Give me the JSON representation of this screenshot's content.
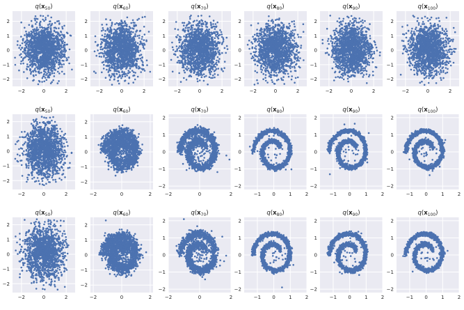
{
  "chart_data": [
    {
      "type": "scatter",
      "title": "q(x₅₀)",
      "title_base": "q(",
      "title_sub": "50",
      "pattern": "blob",
      "xlim": [
        -2.8,
        2.8
      ],
      "ylim": [
        -2.5,
        2.7
      ],
      "xticks": [
        -2,
        0,
        2
      ],
      "yticks": [
        -2,
        -1,
        0,
        1,
        2
      ],
      "color": "#4c72b0",
      "background": "#eaeaf2"
    },
    {
      "type": "scatter",
      "title": "q(x₆₀)",
      "title_base": "q(",
      "title_sub": "60",
      "pattern": "blob",
      "xlim": [
        -2.8,
        2.8
      ],
      "ylim": [
        -2.5,
        2.7
      ],
      "xticks": [
        -2,
        0,
        2
      ],
      "yticks": [
        -2,
        -1,
        0,
        1,
        2
      ],
      "color": "#4c72b0",
      "background": "#eaeaf2"
    },
    {
      "type": "scatter",
      "title": "q(x₇₀)",
      "title_base": "q(",
      "title_sub": "70",
      "pattern": "blob",
      "xlim": [
        -2.8,
        2.8
      ],
      "ylim": [
        -2.5,
        2.7
      ],
      "xticks": [
        -2,
        0,
        2
      ],
      "yticks": [
        -2,
        -1,
        0,
        1,
        2
      ],
      "color": "#4c72b0",
      "background": "#eaeaf2"
    },
    {
      "type": "scatter",
      "title": "q(x₈₀)",
      "title_base": "q(",
      "title_sub": "80",
      "pattern": "blob",
      "xlim": [
        -2.8,
        2.8
      ],
      "ylim": [
        -2.5,
        2.7
      ],
      "xticks": [
        -2,
        0,
        2
      ],
      "yticks": [
        -2,
        -1,
        0,
        1,
        2
      ],
      "color": "#4c72b0",
      "background": "#eaeaf2"
    },
    {
      "type": "scatter",
      "title": "q(x₉₀)",
      "title_base": "q(",
      "title_sub": "90",
      "pattern": "blob",
      "xlim": [
        -2.8,
        2.8
      ],
      "ylim": [
        -2.5,
        2.7
      ],
      "xticks": [
        -2,
        0,
        2
      ],
      "yticks": [
        -2,
        -1,
        0,
        1,
        2
      ],
      "color": "#4c72b0",
      "background": "#eaeaf2"
    },
    {
      "type": "scatter",
      "title": "q(x₁₀₀)",
      "title_base": "q(",
      "title_sub": "100",
      "pattern": "blob",
      "xlim": [
        -2.8,
        2.8
      ],
      "ylim": [
        -2.5,
        2.7
      ],
      "xticks": [
        -2,
        0,
        2
      ],
      "yticks": [
        -2,
        -1,
        0,
        1,
        2
      ],
      "color": "#4c72b0",
      "background": "#eaeaf2"
    },
    {
      "type": "scatter",
      "title": "q(x₅₀)",
      "title_base": "q(",
      "title_sub": "50",
      "pattern": "blob",
      "xlim": [
        -2.8,
        2.8
      ],
      "ylim": [
        -2.6,
        2.5
      ],
      "xticks": [
        -2,
        0,
        2
      ],
      "yticks": [
        -2,
        -1,
        0,
        1,
        2
      ],
      "color": "#4c72b0",
      "background": "#eaeaf2"
    },
    {
      "type": "scatter",
      "title": "q(x₆₀)",
      "title_base": "q(",
      "title_sub": "60",
      "pattern": "spiral_noisy",
      "xlim": [
        -2.2,
        2.2
      ],
      "ylim": [
        -2.5,
        2.5
      ],
      "xticks": [
        -2,
        0,
        2
      ],
      "yticks": [
        -2,
        -1,
        0,
        1,
        2
      ],
      "color": "#4c72b0",
      "background": "#eaeaf2"
    },
    {
      "type": "scatter",
      "title": "q(x₇₀)",
      "title_base": "q(",
      "title_sub": "70",
      "pattern": "spiral_mid",
      "xlim": [
        -2.0,
        2.0
      ],
      "ylim": [
        -2.2,
        2.2
      ],
      "xticks": [
        -2,
        0,
        2
      ],
      "yticks": [
        -2,
        -1,
        0,
        1,
        2
      ],
      "color": "#4c72b0",
      "background": "#eaeaf2"
    },
    {
      "type": "scatter",
      "title": "q(x₈₀)",
      "title_base": "q(",
      "title_sub": "80",
      "pattern": "spiral_clean",
      "xlim": [
        -1.8,
        2.0
      ],
      "ylim": [
        -2.2,
        2.2
      ],
      "xticks": [
        -1,
        0,
        1,
        2
      ],
      "yticks": [
        -2,
        -1,
        0,
        1,
        2
      ],
      "color": "#4c72b0",
      "background": "#eaeaf2"
    },
    {
      "type": "scatter",
      "title": "q(x₉₀)",
      "title_base": "q(",
      "title_sub": "90",
      "pattern": "spiral_clean",
      "xlim": [
        -1.8,
        2.0
      ],
      "ylim": [
        -2.2,
        2.2
      ],
      "xticks": [
        -1,
        0,
        1,
        2
      ],
      "yticks": [
        -2,
        -1,
        0,
        1,
        2
      ],
      "color": "#4c72b0",
      "background": "#eaeaf2"
    },
    {
      "type": "scatter",
      "title": "q(x₁₀₀)",
      "title_base": "q(",
      "title_sub": "100",
      "pattern": "spiral_clean",
      "xlim": [
        -1.8,
        2.0
      ],
      "ylim": [
        -2.2,
        2.2
      ],
      "xticks": [
        -1,
        0,
        1,
        2
      ],
      "yticks": [
        -2,
        -1,
        0,
        1,
        2
      ],
      "color": "#4c72b0",
      "background": "#eaeaf2"
    },
    {
      "type": "scatter",
      "title": "q(x₅₀)",
      "title_base": "q(",
      "title_sub": "50",
      "pattern": "blob",
      "xlim": [
        -2.8,
        2.8
      ],
      "ylim": [
        -2.6,
        2.5
      ],
      "xticks": [
        -2,
        0,
        2
      ],
      "yticks": [
        -2,
        -1,
        0,
        1,
        2
      ],
      "color": "#4c72b0",
      "background": "#eaeaf2"
    },
    {
      "type": "scatter",
      "title": "q(x₆₀)",
      "title_base": "q(",
      "title_sub": "60",
      "pattern": "spiral_noisy",
      "xlim": [
        -2.2,
        2.2
      ],
      "ylim": [
        -2.5,
        2.5
      ],
      "xticks": [
        -2,
        0,
        2
      ],
      "yticks": [
        -2,
        -1,
        0,
        1,
        2
      ],
      "color": "#4c72b0",
      "background": "#eaeaf2"
    },
    {
      "type": "scatter",
      "title": "q(x₇₀)",
      "title_base": "q(",
      "title_sub": "70",
      "pattern": "spiral_mid",
      "xlim": [
        -2.0,
        2.0
      ],
      "ylim": [
        -2.2,
        2.2
      ],
      "xticks": [
        -2,
        0,
        2
      ],
      "yticks": [
        -2,
        -1,
        0,
        1,
        2
      ],
      "color": "#4c72b0",
      "background": "#eaeaf2"
    },
    {
      "type": "scatter",
      "title": "q(x₈₀)",
      "title_base": "q(",
      "title_sub": "80",
      "pattern": "spiral_clean",
      "xlim": [
        -1.8,
        2.0
      ],
      "ylim": [
        -2.2,
        2.2
      ],
      "xticks": [
        -1,
        0,
        1,
        2
      ],
      "yticks": [
        -2,
        -1,
        0,
        1,
        2
      ],
      "color": "#4c72b0",
      "background": "#eaeaf2"
    },
    {
      "type": "scatter",
      "title": "q(x₉₀)",
      "title_base": "q(",
      "title_sub": "90",
      "pattern": "spiral_clean",
      "xlim": [
        -1.8,
        2.0
      ],
      "ylim": [
        -2.2,
        2.2
      ],
      "xticks": [
        -1,
        0,
        1,
        2
      ],
      "yticks": [
        -2,
        -1,
        0,
        1,
        2
      ],
      "color": "#4c72b0",
      "background": "#eaeaf2"
    },
    {
      "type": "scatter",
      "title": "q(x₁₀₀)",
      "title_base": "q(",
      "title_sub": "100",
      "pattern": "spiral_clean",
      "xlim": [
        -1.8,
        2.0
      ],
      "ylim": [
        -2.2,
        2.2
      ],
      "xticks": [
        -1,
        0,
        1,
        2
      ],
      "yticks": [
        -2,
        -1,
        0,
        1,
        2
      ],
      "color": "#4c72b0",
      "background": "#eaeaf2"
    }
  ]
}
